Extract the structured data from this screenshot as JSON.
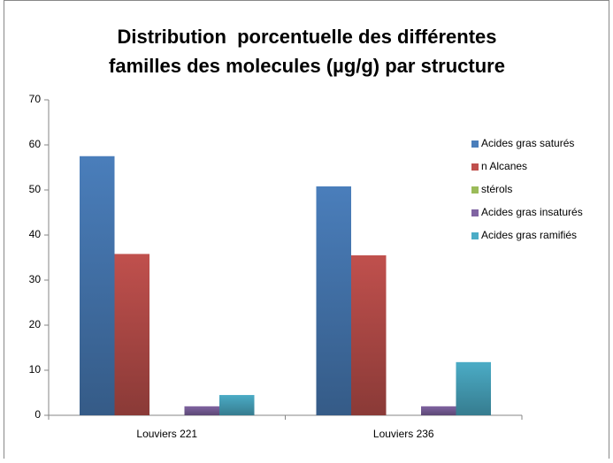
{
  "chart_data": {
    "type": "bar",
    "title": [
      "Distribution  porcentuelle des différentes",
      "familles des molecules (µg/g) par structure"
    ],
    "categories": [
      "Louviers 221",
      "Louviers 236"
    ],
    "series": [
      {
        "name": "Acides gras saturés",
        "color": "#4a7ebb",
        "values": [
          57.5,
          50.8
        ]
      },
      {
        "name": "n Alcanes",
        "color": "#c0504d",
        "values": [
          35.8,
          35.5
        ]
      },
      {
        "name": "stérols",
        "color": "#9bbb59",
        "values": [
          0,
          0
        ]
      },
      {
        "name": "Acides gras insaturés",
        "color": "#8064a2",
        "values": [
          2,
          2
        ]
      },
      {
        "name": "Acides gras ramifiés",
        "color": "#4bacc6",
        "values": [
          4.5,
          11.8
        ]
      }
    ],
    "ylim": [
      0,
      70
    ],
    "yticks": [
      0,
      10,
      20,
      30,
      40,
      50,
      60,
      70
    ],
    "grid": false,
    "legend": "right"
  }
}
